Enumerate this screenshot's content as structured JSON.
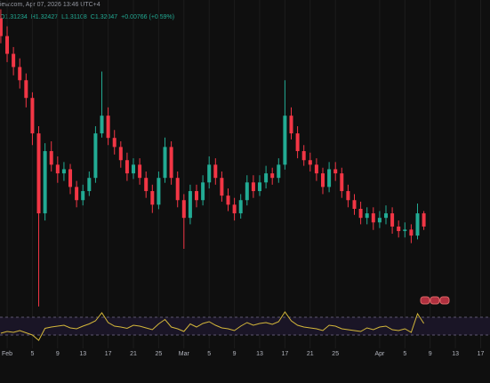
{
  "header": {
    "source": "iew.com, Apr 07, 2026 13:46 UTC+4",
    "ohlc": [
      "O1.31234",
      "H1.32427",
      "L1.31108",
      "C1.32047",
      "+0.00766 (+0.59%)"
    ]
  },
  "chart_data": [
    {
      "type": "candlestick",
      "up_color": "#22ab94",
      "down_color": "#f23645",
      "x": [
        -1,
        0,
        1,
        2,
        3,
        4,
        5,
        6,
        7,
        8,
        9,
        10,
        11,
        12,
        13,
        14,
        15,
        16,
        17,
        18,
        19,
        20,
        21,
        22,
        23,
        24,
        25,
        26,
        27,
        28,
        29,
        30,
        31,
        32,
        33,
        34,
        35,
        36,
        37,
        38,
        39,
        40,
        41,
        42,
        43,
        44,
        45,
        46,
        47,
        48,
        49,
        50,
        51,
        52,
        53,
        54,
        55,
        56,
        57,
        58,
        59,
        60,
        61,
        62,
        63,
        64,
        65,
        66
      ],
      "open": [
        1.3756,
        1.3709,
        1.3662,
        1.3627,
        1.3592,
        1.3545,
        1.3451,
        1.3239,
        1.3404,
        1.3368,
        1.3345,
        1.3356,
        1.3309,
        1.3274,
        1.3298,
        1.3333,
        1.3451,
        1.3498,
        1.3439,
        1.3415,
        1.338,
        1.3345,
        1.3368,
        1.3333,
        1.3298,
        1.3262,
        1.3333,
        1.3415,
        1.3333,
        1.3274,
        1.3227,
        1.3298,
        1.3274,
        1.3321,
        1.3368,
        1.3333,
        1.3286,
        1.3262,
        1.3239,
        1.3274,
        1.3321,
        1.3298,
        1.3321,
        1.3345,
        1.3333,
        1.3368,
        1.3498,
        1.3451,
        1.3404,
        1.338,
        1.3368,
        1.3345,
        1.3309,
        1.3356,
        1.3345,
        1.3298,
        1.3274,
        1.3251,
        1.3227,
        1.3239,
        1.3215,
        1.3227,
        1.3239,
        1.3204,
        1.3192,
        1.3196,
        1.318,
        1.3239
      ],
      "high": [
        1.378,
        1.3735,
        1.368,
        1.365,
        1.361,
        1.356,
        1.347,
        1.3425,
        1.343,
        1.339,
        1.3375,
        1.337,
        1.3325,
        1.3315,
        1.335,
        1.347,
        1.3615,
        1.352,
        1.346,
        1.343,
        1.34,
        1.3385,
        1.3385,
        1.335,
        1.3315,
        1.335,
        1.344,
        1.343,
        1.335,
        1.329,
        1.3315,
        1.3315,
        1.334,
        1.339,
        1.3385,
        1.335,
        1.3305,
        1.328,
        1.329,
        1.334,
        1.334,
        1.334,
        1.3365,
        1.336,
        1.3385,
        1.3592,
        1.352,
        1.347,
        1.342,
        1.34,
        1.3385,
        1.336,
        1.3375,
        1.3375,
        1.336,
        1.3315,
        1.329,
        1.327,
        1.3255,
        1.3255,
        1.3245,
        1.326,
        1.3255,
        1.322,
        1.3215,
        1.321,
        1.3265,
        1.3245
      ],
      "low": [
        1.369,
        1.364,
        1.3605,
        1.357,
        1.352,
        1.342,
        1.2992,
        1.322,
        1.335,
        1.332,
        1.3325,
        1.329,
        1.3255,
        1.326,
        1.3285,
        1.332,
        1.344,
        1.342,
        1.3395,
        1.336,
        1.3325,
        1.333,
        1.3315,
        1.328,
        1.324,
        1.325,
        1.332,
        1.3315,
        1.3255,
        1.3145,
        1.321,
        1.3255,
        1.326,
        1.3305,
        1.3315,
        1.327,
        1.3245,
        1.322,
        1.3225,
        1.326,
        1.328,
        1.3285,
        1.3305,
        1.3315,
        1.332,
        1.3355,
        1.3435,
        1.3385,
        1.3365,
        1.335,
        1.3325,
        1.329,
        1.3295,
        1.3325,
        1.328,
        1.3255,
        1.3235,
        1.321,
        1.321,
        1.3195,
        1.32,
        1.321,
        1.3185,
        1.3175,
        1.3175,
        1.316,
        1.317,
        1.3195
      ],
      "close": [
        1.3709,
        1.3662,
        1.3627,
        1.3592,
        1.3545,
        1.3451,
        1.3239,
        1.3404,
        1.3368,
        1.3345,
        1.3356,
        1.3309,
        1.3274,
        1.3298,
        1.3333,
        1.3451,
        1.3498,
        1.3439,
        1.3415,
        1.338,
        1.3345,
        1.3368,
        1.3333,
        1.3298,
        1.3262,
        1.3333,
        1.3415,
        1.3333,
        1.3274,
        1.3227,
        1.3298,
        1.3274,
        1.3321,
        1.3368,
        1.3333,
        1.3286,
        1.3262,
        1.3239,
        1.3274,
        1.3321,
        1.3298,
        1.3321,
        1.3345,
        1.3333,
        1.3368,
        1.3498,
        1.3451,
        1.3404,
        1.338,
        1.3368,
        1.3345,
        1.3309,
        1.3356,
        1.3345,
        1.3298,
        1.3274,
        1.3251,
        1.3227,
        1.3239,
        1.3215,
        1.3227,
        1.3239,
        1.3204,
        1.3192,
        1.3196,
        1.318,
        1.3239,
        1.3204
      ],
      "xlim": [
        -1.13,
        76.48
      ],
      "ylim": [
        1.298,
        1.38
      ],
      "grid": true,
      "xticks": [
        {
          "value": 0,
          "label": "Feb"
        },
        {
          "value": 4,
          "label": "5"
        },
        {
          "value": 8,
          "label": "9"
        },
        {
          "value": 12,
          "label": "13"
        },
        {
          "value": 16,
          "label": "17"
        },
        {
          "value": 20,
          "label": "21"
        },
        {
          "value": 24,
          "label": "25"
        },
        {
          "value": 28,
          "label": "Mar"
        },
        {
          "value": 32,
          "label": "5"
        },
        {
          "value": 36,
          "label": "9"
        },
        {
          "value": 40,
          "label": "13"
        },
        {
          "value": 44,
          "label": "17"
        },
        {
          "value": 48,
          "label": "21"
        },
        {
          "value": 52,
          "label": "25"
        },
        {
          "value": 59,
          "label": "Apr"
        },
        {
          "value": 63,
          "label": "5"
        },
        {
          "value": 67,
          "label": "9"
        },
        {
          "value": 71,
          "label": "13"
        },
        {
          "value": 75,
          "label": "17"
        }
      ]
    },
    {
      "type": "line",
      "color": "#d4b73a",
      "ylim": [
        0,
        100
      ],
      "bands": [
        30,
        70
      ],
      "values": [
        34,
        38,
        36,
        40,
        35,
        30,
        18,
        45,
        48,
        50,
        52,
        46,
        44,
        50,
        55,
        62,
        80,
        58,
        50,
        48,
        45,
        52,
        50,
        46,
        42,
        55,
        65,
        48,
        44,
        38,
        55,
        48,
        56,
        60,
        52,
        46,
        44,
        40,
        50,
        58,
        52,
        56,
        58,
        54,
        60,
        82,
        62,
        52,
        48,
        46,
        44,
        40,
        52,
        50,
        44,
        42,
        40,
        38,
        46,
        42,
        48,
        50,
        42,
        40,
        44,
        36,
        78,
        56
      ]
    }
  ]
}
